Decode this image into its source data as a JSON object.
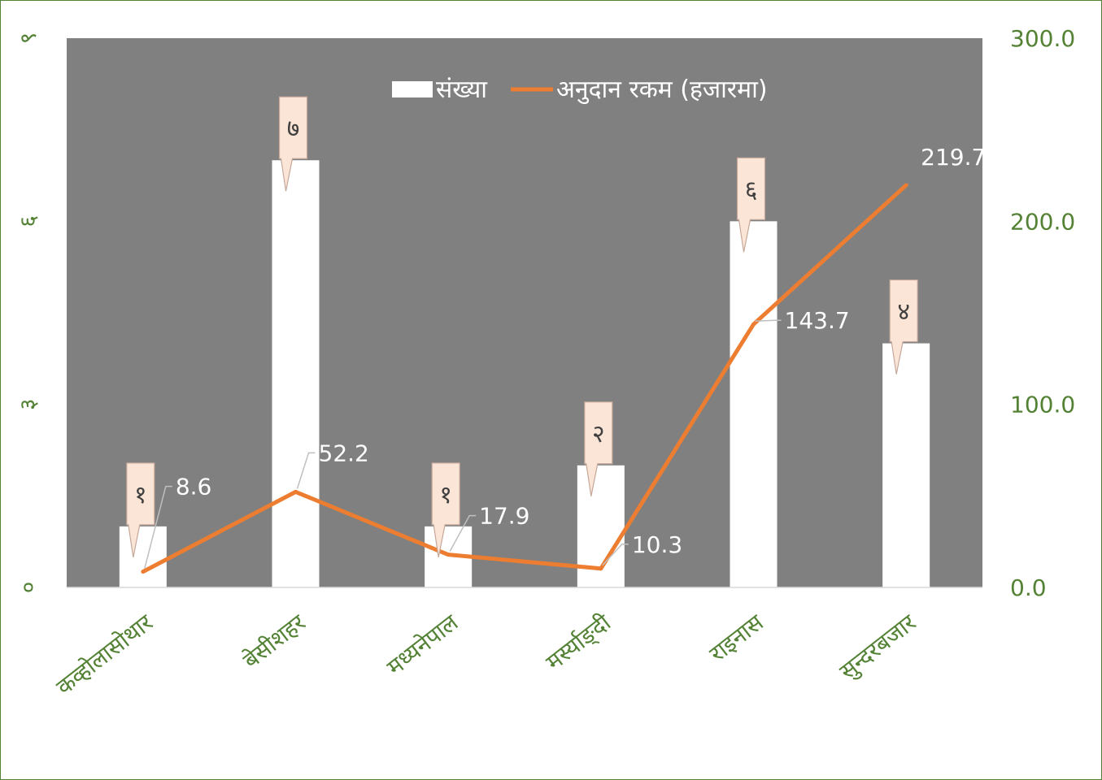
{
  "chart_data": {
    "type": "bar",
    "title": "",
    "categories": [
      "कव्होलासोथार",
      "बेसीशहर",
      "मध्यनेपाल",
      "मर्स्याङ्दी",
      "राइनास",
      "सुन्दरबजार"
    ],
    "category_labels": [
      "कव्होलासोथार",
      "बेसीशहर",
      "मध्यनेपाल",
      "मर्स्याङ्दी",
      "राइनास",
      "सुन्दरबजार"
    ],
    "series": [
      {
        "name": "संख्या",
        "type": "bar",
        "axis": "left",
        "values": [
          1,
          7,
          1,
          2,
          6,
          4
        ],
        "value_labels": [
          "१",
          "७",
          "१",
          "२",
          "६",
          "४"
        ]
      },
      {
        "name": "अनुदान रकम (हजारमा)",
        "type": "line",
        "axis": "right",
        "values": [
          8.6,
          52.2,
          17.9,
          10.3,
          143.7,
          219.7
        ],
        "value_labels": [
          "8.6",
          "52.2",
          "17.9",
          "10.3",
          "143.7",
          "219.7"
        ]
      }
    ],
    "y_left": {
      "ylim": [
        0,
        9
      ],
      "ticks": [
        0,
        3,
        6,
        9
      ],
      "tick_labels": [
        "०",
        "३",
        "६",
        "९"
      ]
    },
    "y_right": {
      "ylim": [
        0,
        300
      ],
      "ticks": [
        0,
        100,
        200,
        300
      ],
      "tick_labels": [
        "0.0",
        "100.0",
        "200.0",
        "300.0"
      ]
    },
    "legend": {
      "position": "top-center",
      "items": [
        "संख्या",
        "अनुदान रकम (हजारमा)"
      ]
    },
    "grid": false,
    "colors": {
      "plot_bg": "#808080",
      "bar": "#ffffff",
      "line": "#ed7d31",
      "axis_text": "#548235",
      "callout_bg": "#fbe5d6",
      "callout_border": "#c5a89a",
      "frame": "#548235"
    }
  }
}
